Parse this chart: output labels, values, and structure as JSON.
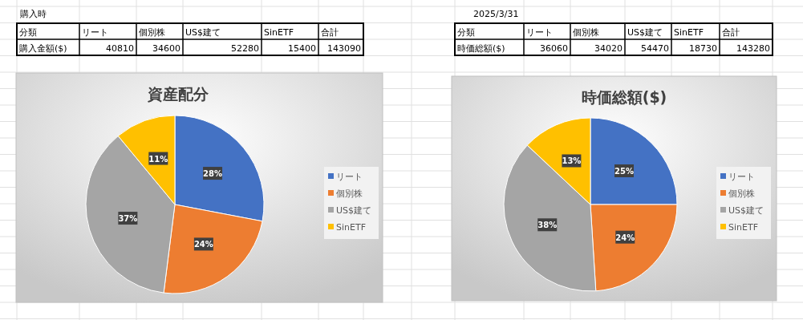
{
  "chart_data": [
    {
      "type": "pie",
      "title": "資産配分",
      "subtitle": "購入時",
      "categories": [
        "リート",
        "個別株",
        "US$建て",
        "SinETF"
      ],
      "values": [
        28,
        24,
        37,
        11
      ],
      "colors": [
        "#4472c4",
        "#ed7d31",
        "#a5a5a5",
        "#ffc000"
      ],
      "value_labels": [
        "28%",
        "24%",
        "37%",
        "11%"
      ],
      "legend": "right",
      "annotations": [
        "分類",
        "合計",
        "購入金額($)",
        "40810",
        "34600",
        "52280",
        "15400",
        "143090"
      ]
    },
    {
      "type": "pie",
      "title": "時価総額($)",
      "subtitle": "2025/3/31",
      "categories": [
        "リート",
        "個別株",
        "US$建て",
        "SinETF"
      ],
      "values": [
        25,
        24,
        38,
        13
      ],
      "colors": [
        "#4472c4",
        "#ed7d31",
        "#a5a5a5",
        "#ffc000"
      ],
      "value_labels": [
        "25%",
        "24%",
        "38%",
        "13%"
      ],
      "legend": "right",
      "annotations": [
        "分類",
        "合計",
        "時価総額($)",
        "36060",
        "34020",
        "54470",
        "18730",
        "143280"
      ]
    }
  ]
}
